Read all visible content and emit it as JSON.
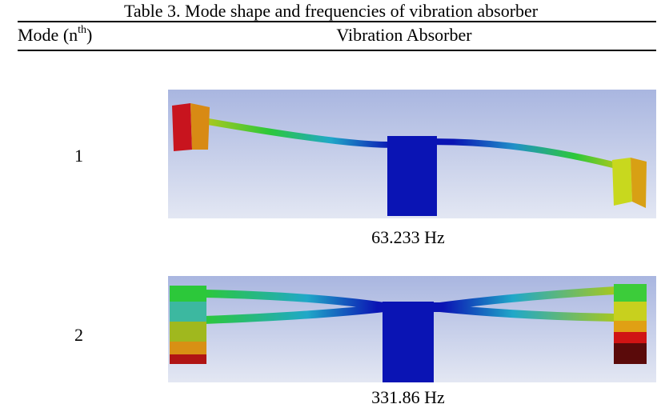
{
  "caption": "Table 3. Mode shape and frequencies of vibration absorber",
  "header": [
    {
      "text": "Mode (n",
      "sup": "th",
      "tail": ")"
    },
    "Vibration Absorber"
  ],
  "rows": [
    {
      "mode": "1",
      "frequency": "63.233 Hz"
    },
    {
      "mode": "2",
      "frequency": "331.86 Hz"
    }
  ]
}
